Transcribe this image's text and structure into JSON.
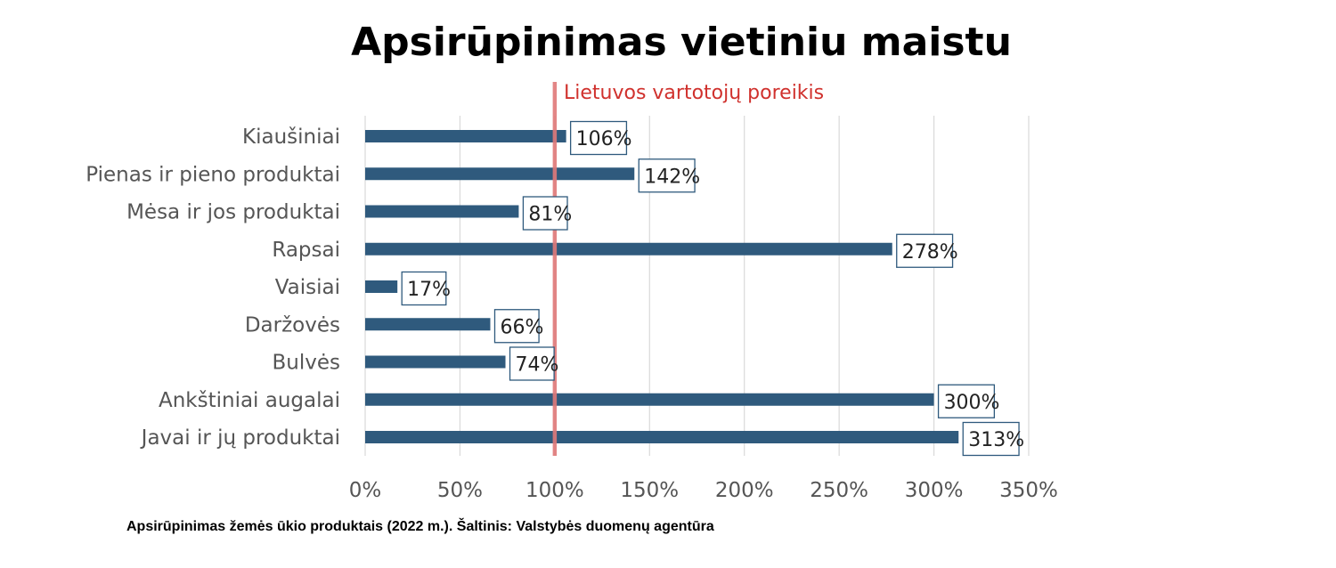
{
  "chart_data": {
    "type": "bar",
    "orientation": "horizontal",
    "title": "Apsirūpinimas vietiniu maistu",
    "categories": [
      "Kiaušiniai",
      "Pienas ir pieno produktai",
      "Mėsa ir jos produktai",
      "Rapsai",
      "Vaisiai",
      "Daržovės",
      "Bulvės",
      "Ankštiniai augalai",
      "Javai ir jų produktai"
    ],
    "values": [
      106,
      142,
      81,
      278,
      17,
      66,
      74,
      300,
      313
    ],
    "data_labels": [
      "106%",
      "142%",
      "81%",
      "278%",
      "17%",
      "66%",
      "74%",
      "300%",
      "313%"
    ],
    "xlim": [
      0,
      350
    ],
    "x_ticks": [
      0,
      50,
      100,
      150,
      200,
      250,
      300,
      350
    ],
    "x_tick_labels": [
      "0%",
      "50%",
      "100%",
      "150%",
      "200%",
      "250%",
      "300%",
      "350%"
    ],
    "xlabel": "",
    "ylabel": "",
    "grid": true,
    "reference_line": {
      "value": 100,
      "label": "Lietuvos vartotojų poreikis",
      "color": "#e07a7a",
      "label_color": "#d0312d"
    },
    "bar_color": "#2f5a7d",
    "caption": "Apsirūpinimas žemės ūkio produktais (2022 m.). Šaltinis: Valstybės duomenų agentūra"
  }
}
